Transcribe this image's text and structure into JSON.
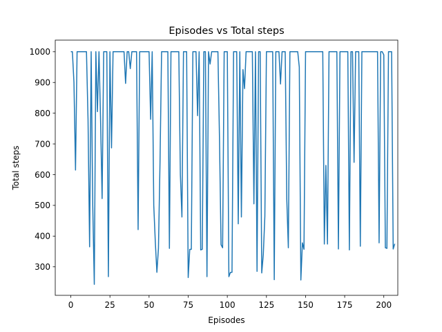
{
  "chart_data": {
    "type": "line",
    "title": "Episodes vs Total steps",
    "xlabel": "Episodes",
    "ylabel": "Total steps",
    "xlim": [
      -9.95,
      208.95
    ],
    "ylim": [
      207.15,
      1037.85
    ],
    "xticks": [
      0,
      25,
      50,
      75,
      100,
      125,
      150,
      175,
      200
    ],
    "yticks": [
      300,
      400,
      500,
      600,
      700,
      800,
      900,
      1000
    ],
    "grid": false,
    "series": [
      {
        "name": "Total steps",
        "color": "#1f77b4",
        "values": [
          1000,
          1000,
          900,
          615,
          1000,
          1000,
          1000,
          1000,
          1000,
          1000,
          1000,
          780,
          365,
          1000,
          500,
          243,
          1000,
          805,
          1000,
          780,
          522,
          1000,
          1000,
          1000,
          268,
          1000,
          687,
          1000,
          1000,
          1000,
          1000,
          1000,
          1000,
          1000,
          1000,
          897,
          1000,
          1000,
          945,
          1000,
          1000,
          1000,
          1000,
          421,
          1000,
          1000,
          1000,
          1000,
          1000,
          1000,
          1000,
          780,
          1000,
          500,
          380,
          282,
          360,
          640,
          1000,
          1000,
          1000,
          1000,
          1000,
          360,
          1000,
          1000,
          1000,
          1000,
          1000,
          1000,
          600,
          462,
          1000,
          1000,
          1000,
          265,
          357,
          357,
          1000,
          1000,
          1000,
          792,
          1000,
          355,
          357,
          1000,
          1000,
          268,
          1000,
          960,
          1000,
          1000,
          1000,
          1000,
          1000,
          720,
          372,
          362,
          1000,
          1000,
          1000,
          268,
          282,
          282,
          1000,
          1000,
          1000,
          440,
          1000,
          462,
          942,
          880,
          1000,
          1000,
          1000,
          1000,
          1000,
          505,
          1000,
          285,
          1000,
          1000,
          280,
          340,
          465,
          1000,
          1000,
          1000,
          1000,
          1000,
          258,
          1000,
          1000,
          1000,
          895,
          1000,
          1000,
          1000,
          520,
          362,
          1000,
          1000,
          1000,
          1000,
          1000,
          1000,
          950,
          257,
          378,
          357,
          1000,
          1000,
          1000,
          1000,
          1000,
          1000,
          1000,
          1000,
          1000,
          1000,
          1000,
          1000,
          374,
          630,
          374,
          1000,
          1000,
          1000,
          1000,
          1000,
          1000,
          358,
          1000,
          1000,
          1000,
          1000,
          1000,
          1000,
          355,
          1000,
          1000,
          640,
          1000,
          1000,
          1000,
          367,
          1000,
          1000,
          1000,
          1000,
          1000,
          1000,
          1000,
          1000,
          1000,
          1000,
          1000,
          378,
          1000,
          1000,
          990,
          362,
          360,
          1000,
          1000,
          1000,
          358,
          375
        ]
      }
    ]
  }
}
